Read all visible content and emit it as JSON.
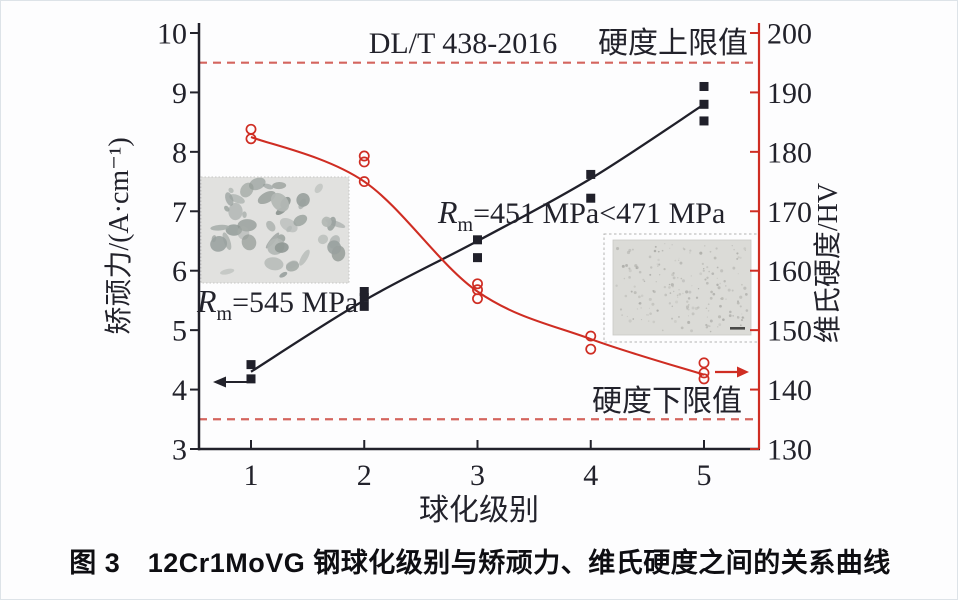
{
  "figure": {
    "caption": "图 3　12Cr1MoVG 钢球化级别与矫顽力、维氏硬度之间的关系曲线"
  },
  "chart_data": {
    "type": "line",
    "title_annotation": "DL/T 438-2016",
    "xlabel": "球化级别",
    "x_ticks": [
      1,
      2,
      3,
      4,
      5
    ],
    "left_axis": {
      "label": "矫顽力/(A·cm⁻¹)",
      "min": 3,
      "max": 10,
      "ticks": [
        3,
        4,
        5,
        6,
        7,
        8,
        9,
        10
      ],
      "color": "#22222b"
    },
    "right_axis": {
      "label": "维氏硬度/HV",
      "min": 130,
      "max": 200,
      "ticks": [
        130,
        140,
        150,
        160,
        170,
        180,
        190,
        200
      ],
      "color": "#cf2d23"
    },
    "series": [
      {
        "name": "矫顽力",
        "axis": "left",
        "color": "#20202a",
        "marker": "filled-square",
        "curve_x": [
          1,
          2,
          3,
          4,
          5
        ],
        "curve_y": [
          4.3,
          5.5,
          6.5,
          7.55,
          8.8
        ],
        "scatter": [
          [
            1,
            4.18
          ],
          [
            1,
            4.42
          ],
          [
            2,
            5.4
          ],
          [
            2,
            5.55
          ],
          [
            2,
            5.65
          ],
          [
            3,
            6.22
          ],
          [
            3,
            6.52
          ],
          [
            4,
            7.22
          ],
          [
            4,
            7.62
          ],
          [
            5,
            8.52
          ],
          [
            5,
            8.8
          ],
          [
            5,
            9.1
          ]
        ],
        "axis_pointer": "left"
      },
      {
        "name": "维氏硬度",
        "axis": "right",
        "color": "#cf2d23",
        "marker": "open-circle",
        "curve_x": [
          1,
          2,
          3,
          4,
          5
        ],
        "curve_y": [
          182.5,
          175,
          156.5,
          148.5,
          142.5
        ],
        "scatter": [
          [
            1,
            182.2
          ],
          [
            1,
            183.8
          ],
          [
            2,
            175
          ],
          [
            2,
            178.3
          ],
          [
            2,
            179.3
          ],
          [
            3,
            155.3
          ],
          [
            3,
            156.8
          ],
          [
            3,
            157.8
          ],
          [
            4,
            146.8
          ],
          [
            4,
            149
          ],
          [
            5,
            141.8
          ],
          [
            5,
            142.8
          ],
          [
            5,
            144.5
          ]
        ],
        "axis_pointer": "right"
      }
    ],
    "limit_lines": [
      {
        "label": "硬度上限值",
        "hv": 195,
        "color": "#d4655e"
      },
      {
        "label": "硬度下限值",
        "hv": 135,
        "color": "#d4655e"
      }
    ],
    "annotations": [
      {
        "id": "rm-left",
        "r": "R",
        "sub": "m",
        "rest": "=545 MPa"
      },
      {
        "id": "rm-right",
        "r": "R",
        "sub": "m",
        "rest": "=451 MPa<471 MPa"
      }
    ],
    "insets": [
      {
        "id": "left",
        "description": "pearlitic microstructure micrograph"
      },
      {
        "id": "right",
        "description": "spheroidized microstructure micrograph"
      }
    ]
  }
}
